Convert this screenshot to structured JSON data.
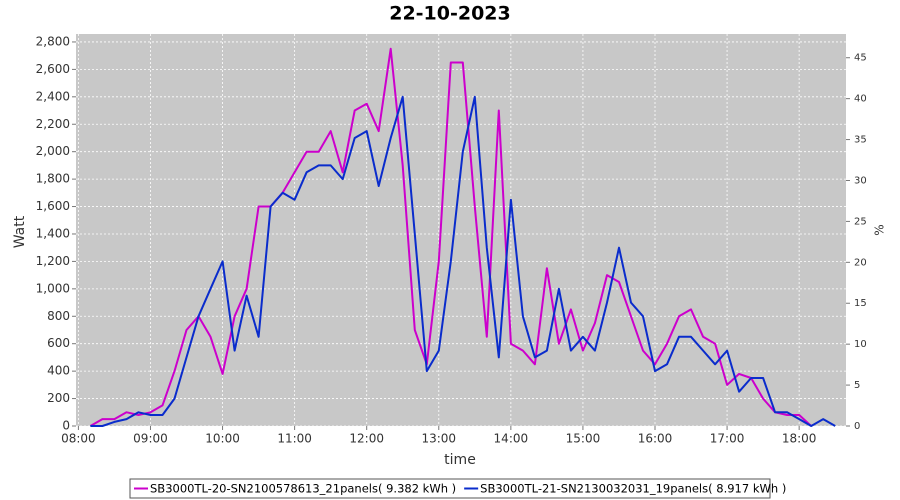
{
  "chart_data": {
    "type": "line",
    "title": "22-10-2023",
    "x_label": "time",
    "y_label": "Watt",
    "y2_label": "%",
    "x": [
      "08:10",
      "08:20",
      "08:30",
      "08:40",
      "08:50",
      "09:00",
      "09:10",
      "09:20",
      "09:30",
      "09:40",
      "09:50",
      "10:00",
      "10:10",
      "10:20",
      "10:30",
      "10:40",
      "10:50",
      "11:00",
      "11:10",
      "11:20",
      "11:30",
      "11:40",
      "11:50",
      "12:00",
      "12:10",
      "12:20",
      "12:30",
      "12:40",
      "12:50",
      "13:00",
      "13:10",
      "13:20",
      "13:30",
      "13:40",
      "13:50",
      "14:00",
      "14:10",
      "14:20",
      "14:30",
      "14:40",
      "14:50",
      "15:00",
      "15:10",
      "15:20",
      "15:30",
      "15:40",
      "15:50",
      "16:00",
      "16:10",
      "16:20",
      "16:30",
      "16:40",
      "16:50",
      "17:00",
      "17:10",
      "17:20",
      "17:30",
      "17:40",
      "17:50",
      "18:00",
      "18:10",
      "18:20",
      "18:30"
    ],
    "series": [
      {
        "name": "SB3000TL-20-SN2100578613_21panels( 9.382 kWh )",
        "color": "#cc00cc",
        "values": [
          0,
          50,
          50,
          100,
          80,
          100,
          150,
          400,
          700,
          800,
          650,
          380,
          800,
          1000,
          1600,
          1600,
          1700,
          1850,
          2000,
          2000,
          2150,
          1850,
          2300,
          2350,
          2150,
          2750,
          1900,
          700,
          450,
          1200,
          2650,
          2650,
          1600,
          650,
          2300,
          600,
          550,
          450,
          1150,
          600,
          850,
          550,
          750,
          1100,
          1050,
          800,
          550,
          450,
          600,
          800,
          850,
          650,
          600,
          300,
          380,
          350,
          200,
          100,
          80,
          80,
          0,
          null,
          null
        ]
      },
      {
        "name": "SB3000TL-21-SN2130032031_19panels( 8.917 kWh )",
        "color": "#0a2ccc",
        "values": [
          0,
          0,
          30,
          50,
          100,
          80,
          80,
          200,
          500,
          800,
          1000,
          1200,
          550,
          950,
          650,
          1600,
          1700,
          1650,
          1850,
          1900,
          1900,
          1800,
          2100,
          2150,
          1750,
          2100,
          2400,
          1400,
          400,
          550,
          1200,
          2000,
          2400,
          1300,
          500,
          1650,
          800,
          500,
          550,
          1000,
          550,
          650,
          550,
          900,
          1300,
          900,
          800,
          400,
          450,
          650,
          650,
          550,
          450,
          550,
          250,
          350,
          350,
          100,
          100,
          50,
          0,
          50,
          0
        ]
      }
    ],
    "xlim": [
      "07:58",
      "18:39"
    ],
    "xticks": [
      "08:00",
      "09:00",
      "10:00",
      "11:00",
      "12:00",
      "13:00",
      "14:00",
      "15:00",
      "16:00",
      "17:00",
      "18:00"
    ],
    "ylim": [
      0,
      2858
    ],
    "yticks": [
      0,
      200,
      400,
      600,
      800,
      {
        "value": 1000,
        "label": "1,000"
      },
      {
        "value": 1200,
        "label": "1,200"
      },
      {
        "value": 1400,
        "label": "1,400"
      },
      {
        "value": 1600,
        "label": "1,600"
      },
      {
        "value": 1800,
        "label": "1,800"
      },
      {
        "value": 2000,
        "label": "2,000"
      },
      {
        "value": 2200,
        "label": "2,200"
      },
      {
        "value": 2400,
        "label": "2,400"
      },
      {
        "value": 2600,
        "label": "2,600"
      },
      {
        "value": 2800,
        "label": "2,800"
      }
    ],
    "y2lim": [
      0,
      47.9
    ],
    "y2ticks": [
      0,
      5,
      10,
      15,
      20,
      25,
      30,
      35,
      40,
      45
    ],
    "grid": true,
    "legend": "bottom"
  }
}
